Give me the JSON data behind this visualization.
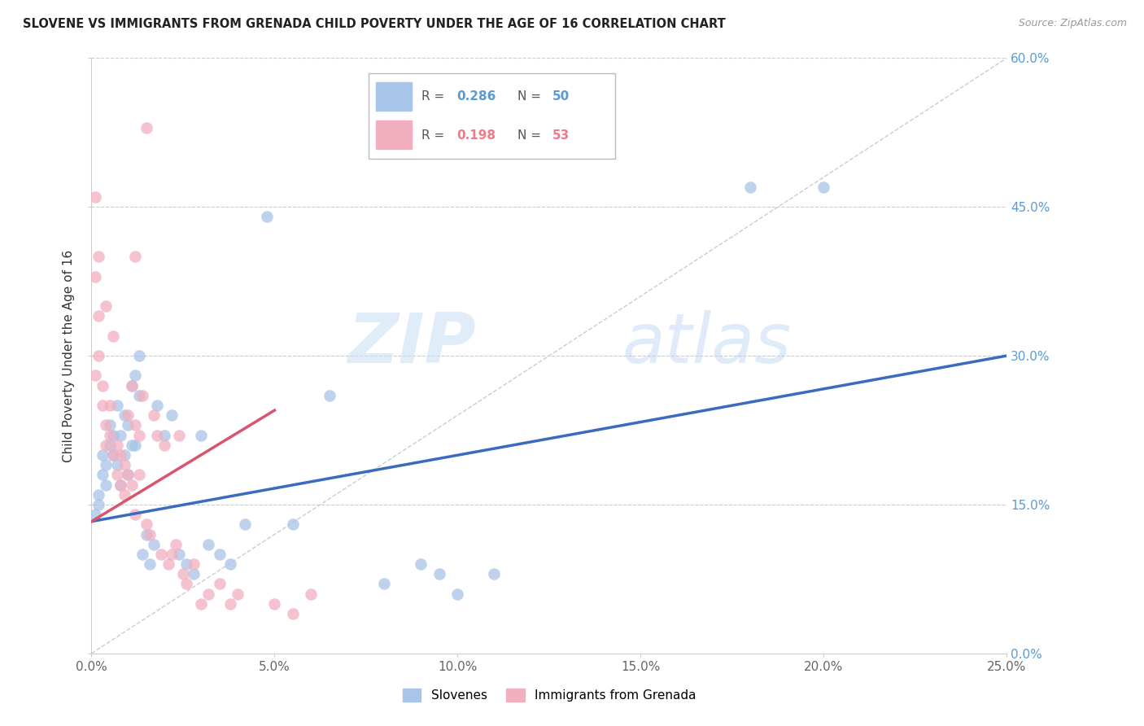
{
  "title": "SLOVENE VS IMMIGRANTS FROM GRENADA CHILD POVERTY UNDER THE AGE OF 16 CORRELATION CHART",
  "source": "Source: ZipAtlas.com",
  "ylabel": "Child Poverty Under the Age of 16",
  "xlim": [
    0.0,
    0.25
  ],
  "ylim": [
    0.0,
    0.6
  ],
  "xticks": [
    0.0,
    0.05,
    0.1,
    0.15,
    0.2,
    0.25
  ],
  "xticklabels": [
    "0.0%",
    "5.0%",
    "10.0%",
    "15.0%",
    "20.0%",
    "25.0%"
  ],
  "yticks": [
    0.0,
    0.15,
    0.3,
    0.45,
    0.6
  ],
  "yticklabels": [
    "0.0%",
    "15.0%",
    "30.0%",
    "45.0%",
    "60.0%"
  ],
  "blue_color": "#a8c4e8",
  "pink_color": "#f2afc0",
  "blue_line_color": "#3a6bbf",
  "pink_line_color": "#d9546e",
  "diag_line_color": "#cccccc",
  "watermark_zip": "ZIP",
  "watermark_atlas": "atlas",
  "R_blue": 0.286,
  "N_blue": 50,
  "R_pink": 0.198,
  "N_pink": 53,
  "blue_trend_x": [
    0.0,
    0.25
  ],
  "blue_trend_y": [
    0.133,
    0.3
  ],
  "pink_trend_x": [
    0.0,
    0.05
  ],
  "pink_trend_y": [
    0.133,
    0.245
  ],
  "blue_x": [
    0.001,
    0.002,
    0.002,
    0.003,
    0.003,
    0.004,
    0.004,
    0.005,
    0.005,
    0.006,
    0.006,
    0.007,
    0.007,
    0.008,
    0.008,
    0.009,
    0.009,
    0.01,
    0.01,
    0.011,
    0.011,
    0.012,
    0.012,
    0.013,
    0.013,
    0.014,
    0.015,
    0.016,
    0.017,
    0.018,
    0.02,
    0.022,
    0.024,
    0.026,
    0.028,
    0.03,
    0.032,
    0.035,
    0.038,
    0.042,
    0.048,
    0.055,
    0.065,
    0.08,
    0.09,
    0.095,
    0.1,
    0.11,
    0.18,
    0.2
  ],
  "blue_y": [
    0.14,
    0.15,
    0.16,
    0.18,
    0.2,
    0.17,
    0.19,
    0.21,
    0.23,
    0.2,
    0.22,
    0.19,
    0.25,
    0.17,
    0.22,
    0.2,
    0.24,
    0.18,
    0.23,
    0.21,
    0.27,
    0.28,
    0.21,
    0.3,
    0.26,
    0.1,
    0.12,
    0.09,
    0.11,
    0.25,
    0.22,
    0.24,
    0.1,
    0.09,
    0.08,
    0.22,
    0.11,
    0.1,
    0.09,
    0.13,
    0.44,
    0.13,
    0.26,
    0.07,
    0.09,
    0.08,
    0.06,
    0.08,
    0.47,
    0.47
  ],
  "pink_x": [
    0.001,
    0.001,
    0.001,
    0.002,
    0.002,
    0.002,
    0.003,
    0.003,
    0.004,
    0.004,
    0.004,
    0.005,
    0.005,
    0.006,
    0.006,
    0.007,
    0.007,
    0.008,
    0.008,
    0.009,
    0.009,
    0.01,
    0.01,
    0.011,
    0.011,
    0.012,
    0.012,
    0.013,
    0.013,
    0.014,
    0.015,
    0.016,
    0.017,
    0.018,
    0.019,
    0.02,
    0.021,
    0.022,
    0.023,
    0.024,
    0.025,
    0.026,
    0.028,
    0.03,
    0.032,
    0.035,
    0.038,
    0.04,
    0.05,
    0.055,
    0.015,
    0.012,
    0.06
  ],
  "pink_y": [
    0.46,
    0.38,
    0.28,
    0.34,
    0.3,
    0.4,
    0.27,
    0.25,
    0.23,
    0.35,
    0.21,
    0.25,
    0.22,
    0.2,
    0.32,
    0.21,
    0.18,
    0.2,
    0.17,
    0.19,
    0.16,
    0.18,
    0.24,
    0.17,
    0.27,
    0.23,
    0.14,
    0.22,
    0.18,
    0.26,
    0.13,
    0.12,
    0.24,
    0.22,
    0.1,
    0.21,
    0.09,
    0.1,
    0.11,
    0.22,
    0.08,
    0.07,
    0.09,
    0.05,
    0.06,
    0.07,
    0.05,
    0.06,
    0.05,
    0.04,
    0.53,
    0.4,
    0.06
  ]
}
